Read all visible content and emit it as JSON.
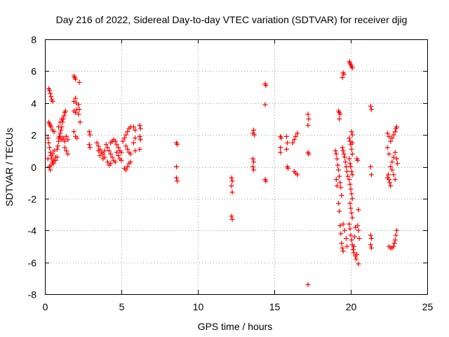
{
  "chart_data": {
    "type": "scatter",
    "title": "Day 216 of 2022, Sidereal Day-to-day VTEC variation (SDTVAR) for receiver djig",
    "xlabel": "GPS time / hours",
    "ylabel": "SDTVAR / TECUs",
    "xlim": [
      0,
      25
    ],
    "ylim": [
      -8,
      8
    ],
    "xticks": [
      0,
      5,
      10,
      15,
      20,
      25
    ],
    "yticks": [
      -8,
      -6,
      -4,
      -2,
      0,
      2,
      4,
      6,
      8
    ],
    "grid": true,
    "marker": "+",
    "color": "#ff0000",
    "series": [
      {
        "name": "SDTVAR",
        "points": [
          [
            0.25,
            4.9
          ],
          [
            0.3,
            4.8
          ],
          [
            0.35,
            4.6
          ],
          [
            0.4,
            4.4
          ],
          [
            0.45,
            4.2
          ],
          [
            0.5,
            4.1
          ],
          [
            0.25,
            2.8
          ],
          [
            0.3,
            2.7
          ],
          [
            0.35,
            2.6
          ],
          [
            0.4,
            2.5
          ],
          [
            0.5,
            2.3
          ],
          [
            0.6,
            2.2
          ],
          [
            0.2,
            1.8
          ],
          [
            0.25,
            1.5
          ],
          [
            0.3,
            1.2
          ],
          [
            0.35,
            0.9
          ],
          [
            0.4,
            0.7
          ],
          [
            0.45,
            0.5
          ],
          [
            0.5,
            0.3
          ],
          [
            0.55,
            0.2
          ],
          [
            0.6,
            0.4
          ],
          [
            0.7,
            0.6
          ],
          [
            0.3,
            0.0
          ],
          [
            0.35,
            -0.2
          ],
          [
            0.4,
            0.1
          ],
          [
            0.5,
            0.8
          ],
          [
            0.6,
            1.0
          ],
          [
            0.2,
            0.5
          ],
          [
            0.8,
            1.1
          ],
          [
            0.85,
            1.3
          ],
          [
            0.9,
            1.6
          ],
          [
            0.95,
            1.9
          ],
          [
            1.0,
            2.1
          ],
          [
            1.05,
            2.3
          ],
          [
            1.1,
            2.5
          ],
          [
            1.15,
            2.8
          ],
          [
            1.2,
            3.0
          ],
          [
            1.25,
            3.2
          ],
          [
            1.3,
            3.4
          ],
          [
            1.35,
            3.5
          ],
          [
            0.9,
            1.8
          ],
          [
            1.0,
            1.9
          ],
          [
            1.1,
            1.7
          ],
          [
            1.2,
            1.8
          ],
          [
            1.3,
            1.6
          ],
          [
            1.4,
            1.9
          ],
          [
            1.5,
            1.7
          ],
          [
            0.9,
            2.5
          ],
          [
            1.0,
            2.8
          ],
          [
            1.1,
            3.0
          ],
          [
            0.7,
            0.4
          ],
          [
            0.8,
            0.6
          ],
          [
            1.3,
            1.2
          ],
          [
            1.4,
            1.0
          ],
          [
            1.5,
            0.8
          ],
          [
            1.9,
            5.7
          ],
          [
            1.95,
            5.6
          ],
          [
            2.0,
            5.5
          ],
          [
            2.25,
            5.3
          ],
          [
            1.9,
            4.1
          ],
          [
            2.0,
            4.3
          ],
          [
            2.05,
            4.0
          ],
          [
            2.2,
            3.9
          ],
          [
            2.25,
            3.6
          ],
          [
            1.9,
            3.5
          ],
          [
            2.0,
            3.4
          ],
          [
            2.1,
            3.6
          ],
          [
            2.2,
            3.3
          ],
          [
            2.3,
            2.8
          ],
          [
            1.9,
            2.2
          ],
          [
            2.0,
            1.9
          ],
          [
            2.1,
            1.8
          ],
          [
            2.9,
            2.2
          ],
          [
            2.95,
            2.0
          ],
          [
            2.9,
            1.4
          ],
          [
            2.95,
            1.2
          ],
          [
            3.4,
            1.5
          ],
          [
            3.5,
            1.3
          ],
          [
            3.6,
            1.1
          ],
          [
            3.7,
            0.9
          ],
          [
            3.8,
            0.8
          ],
          [
            3.9,
            0.6
          ],
          [
            3.5,
            1.0
          ],
          [
            3.6,
            0.7
          ],
          [
            3.8,
            0.5
          ],
          [
            3.9,
            1.0
          ],
          [
            4.0,
            1.4
          ],
          [
            4.1,
            1.2
          ],
          [
            4.2,
            1.0
          ],
          [
            4.3,
            0.8
          ],
          [
            4.4,
            0.6
          ],
          [
            4.5,
            0.4
          ],
          [
            4.6,
            0.3
          ],
          [
            4.1,
            0.3
          ],
          [
            4.2,
            0.1
          ],
          [
            4.3,
            0.2
          ],
          [
            4.3,
            1.5
          ],
          [
            4.4,
            1.6
          ],
          [
            4.5,
            1.7
          ],
          [
            4.6,
            1.6
          ],
          [
            4.7,
            1.4
          ],
          [
            4.8,
            1.2
          ],
          [
            4.9,
            1.0
          ],
          [
            5.0,
            0.9
          ],
          [
            4.7,
            0.9
          ],
          [
            4.8,
            0.7
          ],
          [
            4.9,
            0.5
          ],
          [
            5.0,
            0.4
          ],
          [
            5.1,
            1.6
          ],
          [
            5.2,
            1.8
          ],
          [
            5.3,
            2.0
          ],
          [
            5.4,
            2.2
          ],
          [
            5.5,
            2.4
          ],
          [
            5.6,
            2.5
          ],
          [
            5.3,
            1.3
          ],
          [
            5.4,
            1.1
          ],
          [
            5.5,
            0.9
          ],
          [
            5.6,
            0.8
          ],
          [
            5.2,
            -0.1
          ],
          [
            5.3,
            -0.2
          ],
          [
            5.4,
            0.0
          ],
          [
            5.5,
            0.2
          ],
          [
            5.6,
            0.3
          ],
          [
            5.8,
            2.5
          ],
          [
            5.9,
            2.3
          ],
          [
            5.8,
            1.5
          ],
          [
            5.9,
            1.8
          ],
          [
            5.9,
            1.0
          ],
          [
            6.2,
            2.6
          ],
          [
            6.25,
            2.4
          ],
          [
            6.2,
            1.9
          ],
          [
            6.25,
            1.7
          ],
          [
            6.2,
            1.1
          ],
          [
            8.6,
            1.5
          ],
          [
            8.65,
            1.4
          ],
          [
            8.6,
            0.0
          ],
          [
            8.6,
            -0.7
          ],
          [
            8.65,
            -0.9
          ],
          [
            12.2,
            -0.7
          ],
          [
            12.25,
            -0.9
          ],
          [
            12.2,
            -1.2
          ],
          [
            12.25,
            -1.6
          ],
          [
            12.2,
            -3.1
          ],
          [
            12.25,
            -3.3
          ],
          [
            13.6,
            2.1
          ],
          [
            13.65,
            2.3
          ],
          [
            13.7,
            2.0
          ],
          [
            13.6,
            0.5
          ],
          [
            13.65,
            0.3
          ],
          [
            13.6,
            0.0
          ],
          [
            13.65,
            -0.2
          ],
          [
            14.4,
            5.2
          ],
          [
            14.45,
            5.1
          ],
          [
            14.4,
            3.9
          ],
          [
            14.4,
            -0.8
          ],
          [
            14.45,
            -0.9
          ],
          [
            15.4,
            1.9
          ],
          [
            15.45,
            1.8
          ],
          [
            15.4,
            1.2
          ],
          [
            15.4,
            0.9
          ],
          [
            15.8,
            1.9
          ],
          [
            15.85,
            1.5
          ],
          [
            15.8,
            1.1
          ],
          [
            15.85,
            0.0
          ],
          [
            15.9,
            -0.1
          ],
          [
            16.2,
            1.5
          ],
          [
            16.3,
            1.7
          ],
          [
            16.4,
            1.9
          ],
          [
            16.5,
            2.1
          ],
          [
            16.3,
            -0.3
          ],
          [
            16.4,
            -0.4
          ],
          [
            16.5,
            -0.5
          ],
          [
            17.2,
            3.3
          ],
          [
            17.25,
            3.0
          ],
          [
            17.2,
            2.6
          ],
          [
            17.2,
            0.9
          ],
          [
            17.25,
            0.8
          ],
          [
            17.2,
            -7.4
          ],
          [
            19.2,
            3.5
          ],
          [
            19.25,
            3.4
          ],
          [
            19.3,
            3.3
          ],
          [
            19.25,
            3.0
          ],
          [
            19.0,
            1.0
          ],
          [
            19.05,
            0.8
          ],
          [
            19.1,
            0.5
          ],
          [
            19.15,
            0.1
          ],
          [
            19.2,
            -0.2
          ],
          [
            19.25,
            -0.6
          ],
          [
            19.3,
            -1.0
          ],
          [
            19.35,
            -1.3
          ],
          [
            19.4,
            -1.8
          ],
          [
            19.05,
            -0.8
          ],
          [
            19.1,
            -1.2
          ],
          [
            19.2,
            -2.3
          ],
          [
            19.25,
            -2.8
          ],
          [
            19.3,
            -3.7
          ],
          [
            19.35,
            -4.2
          ],
          [
            19.4,
            -4.8
          ],
          [
            19.45,
            -5.1
          ],
          [
            19.5,
            -5.3
          ],
          [
            19.5,
            5.9
          ],
          [
            19.55,
            5.8
          ],
          [
            19.45,
            5.6
          ],
          [
            19.45,
            1.2
          ],
          [
            19.5,
            1.0
          ],
          [
            19.55,
            0.8
          ],
          [
            19.6,
            0.6
          ],
          [
            19.65,
            0.3
          ],
          [
            19.7,
            0.0
          ],
          [
            19.75,
            -0.3
          ],
          [
            19.8,
            -0.6
          ],
          [
            19.5,
            -3.6
          ],
          [
            19.6,
            -4.0
          ],
          [
            19.7,
            -4.5
          ],
          [
            19.75,
            -5.0
          ],
          [
            19.9,
            6.6
          ],
          [
            19.95,
            6.5
          ],
          [
            20.0,
            6.4
          ],
          [
            20.05,
            6.3
          ],
          [
            20.1,
            6.2
          ],
          [
            19.9,
            1.8
          ],
          [
            19.95,
            1.6
          ],
          [
            20.0,
            1.4
          ],
          [
            20.05,
            1.1
          ],
          [
            20.1,
            0.8
          ],
          [
            19.9,
            0.5
          ],
          [
            19.95,
            0.2
          ],
          [
            20.0,
            0.0
          ],
          [
            20.05,
            -0.3
          ],
          [
            20.1,
            -0.5
          ],
          [
            19.9,
            -0.8
          ],
          [
            19.95,
            -1.1
          ],
          [
            20.0,
            -1.4
          ],
          [
            20.05,
            -1.7
          ],
          [
            20.1,
            -2.0
          ],
          [
            19.95,
            -2.3
          ],
          [
            20.0,
            -2.6
          ],
          [
            20.05,
            -2.9
          ],
          [
            20.1,
            -3.2
          ],
          [
            19.9,
            -3.6
          ],
          [
            19.95,
            -3.9
          ],
          [
            20.0,
            -4.3
          ],
          [
            20.05,
            -4.6
          ],
          [
            20.1,
            -4.9
          ],
          [
            20.15,
            -5.2
          ],
          [
            20.2,
            -5.0
          ],
          [
            20.25,
            -4.4
          ],
          [
            20.3,
            -3.8
          ],
          [
            20.2,
            -5.4
          ],
          [
            20.3,
            -5.6
          ],
          [
            20.4,
            -5.5
          ],
          [
            20.35,
            -5.8
          ],
          [
            20.4,
            0.5
          ],
          [
            20.45,
            0.4
          ],
          [
            20.5,
            -2.7
          ],
          [
            20.45,
            -3.7
          ],
          [
            20.5,
            -4.0
          ],
          [
            20.55,
            -4.5
          ],
          [
            20.5,
            -6.1
          ],
          [
            20.1,
            1.5
          ],
          [
            20.1,
            2.0
          ],
          [
            20.05,
            2.2
          ],
          [
            21.3,
            3.8
          ],
          [
            21.35,
            3.6
          ],
          [
            21.3,
            0.0
          ],
          [
            21.35,
            -0.5
          ],
          [
            21.3,
            -4.3
          ],
          [
            21.35,
            -4.5
          ],
          [
            21.3,
            -4.9
          ],
          [
            21.35,
            -5.1
          ],
          [
            22.4,
            2.1
          ],
          [
            22.5,
            1.9
          ],
          [
            22.6,
            1.6
          ],
          [
            22.4,
            1.2
          ],
          [
            22.5,
            0.8
          ],
          [
            22.45,
            -0.5
          ],
          [
            22.5,
            -0.8
          ],
          [
            22.55,
            -1.0
          ],
          [
            22.6,
            -1.2
          ],
          [
            22.4,
            -0.7
          ],
          [
            22.6,
            0.0
          ],
          [
            22.7,
            0.3
          ],
          [
            22.8,
            0.6
          ],
          [
            22.9,
            0.9
          ],
          [
            22.7,
            -0.2
          ],
          [
            22.8,
            -0.5
          ],
          [
            22.9,
            -0.8
          ],
          [
            22.5,
            -5.0
          ],
          [
            22.6,
            -5.1
          ],
          [
            22.7,
            -5.1
          ],
          [
            22.8,
            -5.0
          ],
          [
            22.85,
            -4.8
          ],
          [
            22.9,
            -4.6
          ],
          [
            22.95,
            -4.3
          ],
          [
            23.0,
            -4.0
          ],
          [
            22.7,
            1.8
          ],
          [
            22.8,
            2.0
          ],
          [
            22.9,
            2.2
          ],
          [
            22.95,
            2.4
          ],
          [
            23.0,
            2.5
          ],
          [
            23.0,
            0.5
          ],
          [
            23.05,
            0.2
          ]
        ]
      }
    ]
  }
}
